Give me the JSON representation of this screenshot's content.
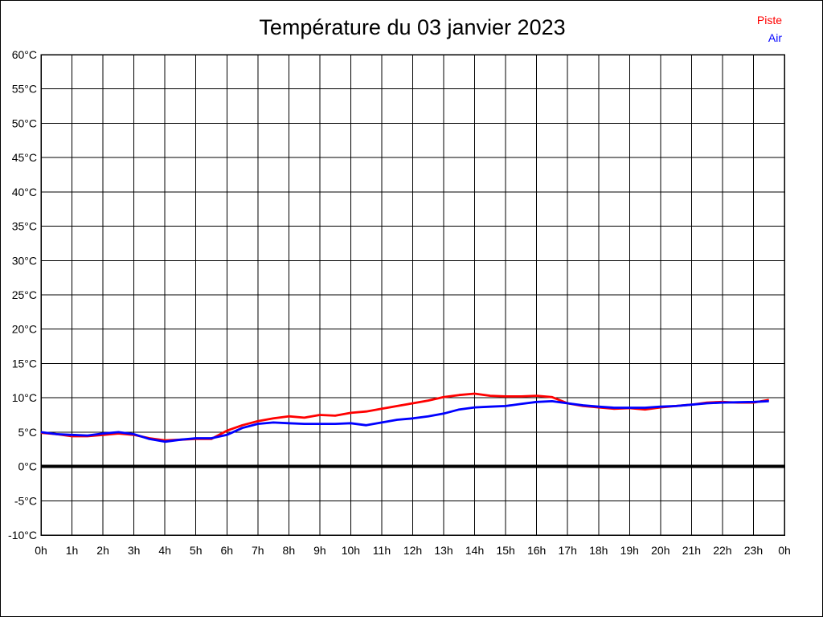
{
  "title": "Température du 03 janvier 2023",
  "legend": {
    "items": [
      {
        "label": "Piste",
        "color": "#ff0000"
      },
      {
        "label": "Air",
        "color": "#0000ff"
      }
    ],
    "position": "top-right"
  },
  "colors": {
    "background": "#ffffff",
    "grid": "#000000",
    "axis_text": "#000000",
    "zero_line": "#000000",
    "piste": "#ff0000",
    "air": "#0000ff"
  },
  "chart_data": {
    "type": "line",
    "title": "Température du 03 janvier 2023",
    "xlabel": "",
    "ylabel": "",
    "xlim": [
      0,
      24
    ],
    "ylim": [
      -10,
      60
    ],
    "ytick_step": 5,
    "grid": true,
    "legend_position": "top-right",
    "zero_line_value": 0,
    "xtick_labels": [
      "0h",
      "1h",
      "2h",
      "3h",
      "4h",
      "5h",
      "6h",
      "7h",
      "8h",
      "9h",
      "10h",
      "11h",
      "12h",
      "13h",
      "14h",
      "15h",
      "16h",
      "17h",
      "18h",
      "19h",
      "20h",
      "21h",
      "22h",
      "23h",
      "0h"
    ],
    "ytick_labels": [
      "60°C",
      "55°C",
      "50°C",
      "45°C",
      "40°C",
      "35°C",
      "30°C",
      "25°C",
      "20°C",
      "15°C",
      "10°C",
      "5°C",
      "0°C",
      "-5°C",
      "-10°C"
    ],
    "x": [
      0,
      0.5,
      1,
      1.5,
      2,
      2.5,
      3,
      3.5,
      4,
      4.5,
      5,
      5.5,
      6,
      6.5,
      7,
      7.5,
      8,
      8.5,
      9,
      9.5,
      10,
      10.5,
      11,
      11.5,
      12,
      12.5,
      13,
      13.5,
      14,
      14.5,
      15,
      15.5,
      16,
      16.5,
      17,
      17.5,
      18,
      18.5,
      19,
      19.5,
      20,
      20.5,
      21,
      21.5,
      22,
      22.5,
      23,
      23.5
    ],
    "series": [
      {
        "name": "Piste",
        "color": "#ff0000",
        "values": [
          4.9,
          4.7,
          4.4,
          4.4,
          4.6,
          4.8,
          4.6,
          4.1,
          3.8,
          3.9,
          4.0,
          4.0,
          5.2,
          6.0,
          6.6,
          7.0,
          7.3,
          7.1,
          7.5,
          7.4,
          7.8,
          8.0,
          8.4,
          8.8,
          9.2,
          9.6,
          10.1,
          10.4,
          10.6,
          10.3,
          10.2,
          10.2,
          10.3,
          10.1,
          9.2,
          8.8,
          8.6,
          8.4,
          8.5,
          8.3,
          8.6,
          8.8,
          9.0,
          9.3,
          9.4,
          9.3,
          9.3,
          9.7
        ]
      },
      {
        "name": "Air",
        "color": "#0000ff",
        "values": [
          5.0,
          4.7,
          4.6,
          4.5,
          4.8,
          5.0,
          4.7,
          4.0,
          3.6,
          3.9,
          4.1,
          4.1,
          4.6,
          5.6,
          6.2,
          6.4,
          6.3,
          6.2,
          6.2,
          6.2,
          6.3,
          6.0,
          6.4,
          6.8,
          7.0,
          7.3,
          7.7,
          8.3,
          8.6,
          8.7,
          8.8,
          9.1,
          9.4,
          9.5,
          9.2,
          8.9,
          8.7,
          8.55,
          8.55,
          8.55,
          8.7,
          8.8,
          9.0,
          9.2,
          9.3,
          9.35,
          9.4,
          9.5
        ]
      }
    ]
  }
}
